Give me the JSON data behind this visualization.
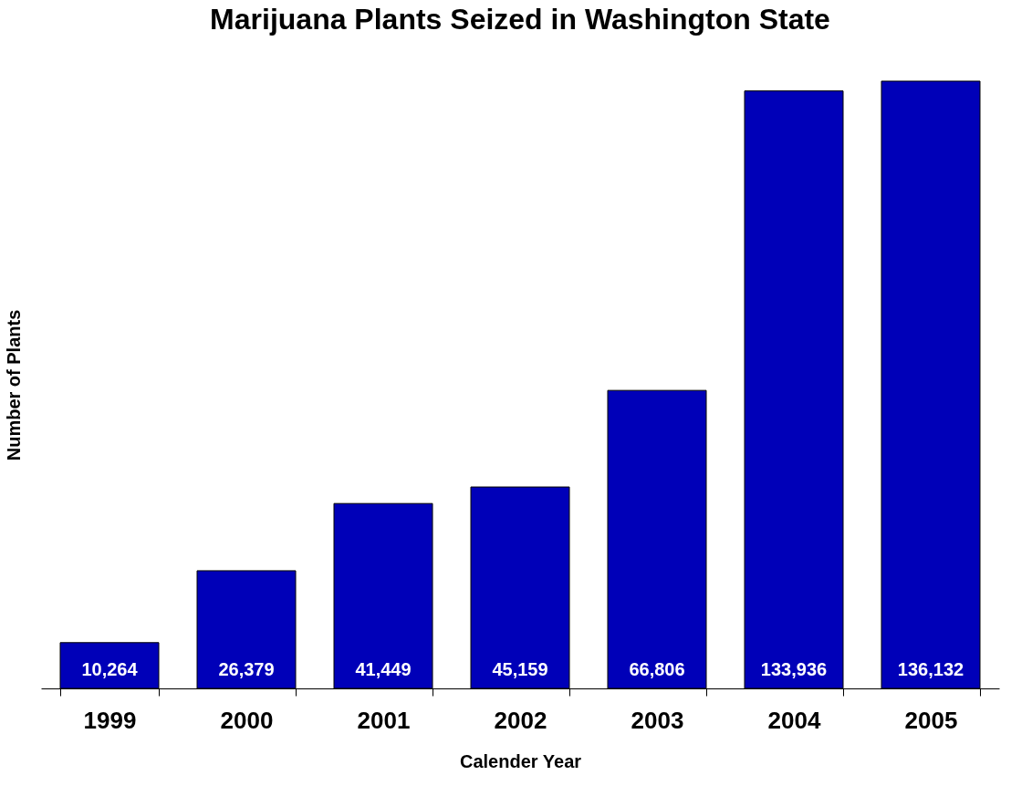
{
  "chart_data": {
    "type": "bar",
    "title": "Marijuana Plants Seized in Washington State",
    "xlabel": "Calender Year",
    "ylabel": "Number of Plants",
    "categories": [
      "1999",
      "2000",
      "2001",
      "2002",
      "2003",
      "2004",
      "2005"
    ],
    "values": [
      10264,
      26379,
      41449,
      45159,
      66806,
      133936,
      136132
    ],
    "value_labels": [
      "10,264",
      "26,379",
      "41,449",
      "45,159",
      "66,806",
      "133,936",
      "136,132"
    ],
    "color": "#0000b8",
    "tick_labels": "x",
    "grid": false
  }
}
